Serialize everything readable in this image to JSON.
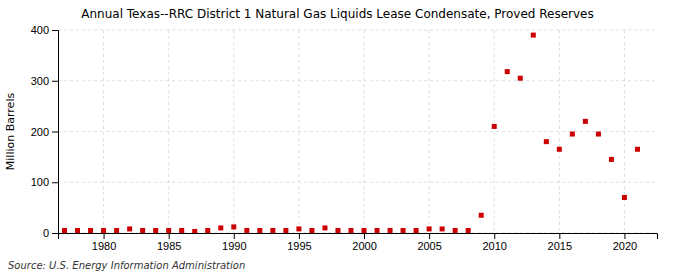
{
  "chart_data": {
    "type": "scatter",
    "title": "Annual Texas--RRC District 1 Natural Gas Liquids Lease Condensate, Proved Reserves",
    "ylabel": "Million Barrels",
    "annotation": "Source: U.S. Energy Information Administration",
    "x": [
      1977,
      1978,
      1979,
      1980,
      1981,
      1982,
      1983,
      1984,
      1985,
      1986,
      1987,
      1988,
      1989,
      1990,
      1991,
      1992,
      1993,
      1994,
      1995,
      1996,
      1997,
      1998,
      1999,
      2000,
      2001,
      2002,
      2003,
      2004,
      2005,
      2006,
      2007,
      2008,
      2009,
      2010,
      2011,
      2012,
      2013,
      2014,
      2015,
      2016,
      2017,
      2018,
      2019,
      2020,
      2021
    ],
    "values": [
      5,
      5,
      5,
      5,
      5,
      8,
      5,
      5,
      5,
      5,
      3,
      5,
      10,
      12,
      5,
      5,
      5,
      5,
      8,
      5,
      10,
      5,
      5,
      5,
      5,
      5,
      5,
      5,
      8,
      8,
      5,
      5,
      35,
      210,
      318,
      305,
      390,
      180,
      165,
      195,
      220,
      195,
      145,
      70,
      165
    ],
    "color": "#cc0000",
    "marker": "square",
    "xlim": [
      1976.5,
      2022.5
    ],
    "ylim": [
      0,
      400
    ],
    "xticks": [
      1980,
      1985,
      1990,
      1995,
      2000,
      2005,
      2010,
      2015,
      2020
    ],
    "yticks": [
      0,
      100,
      200,
      300,
      400
    ],
    "grid": true
  }
}
